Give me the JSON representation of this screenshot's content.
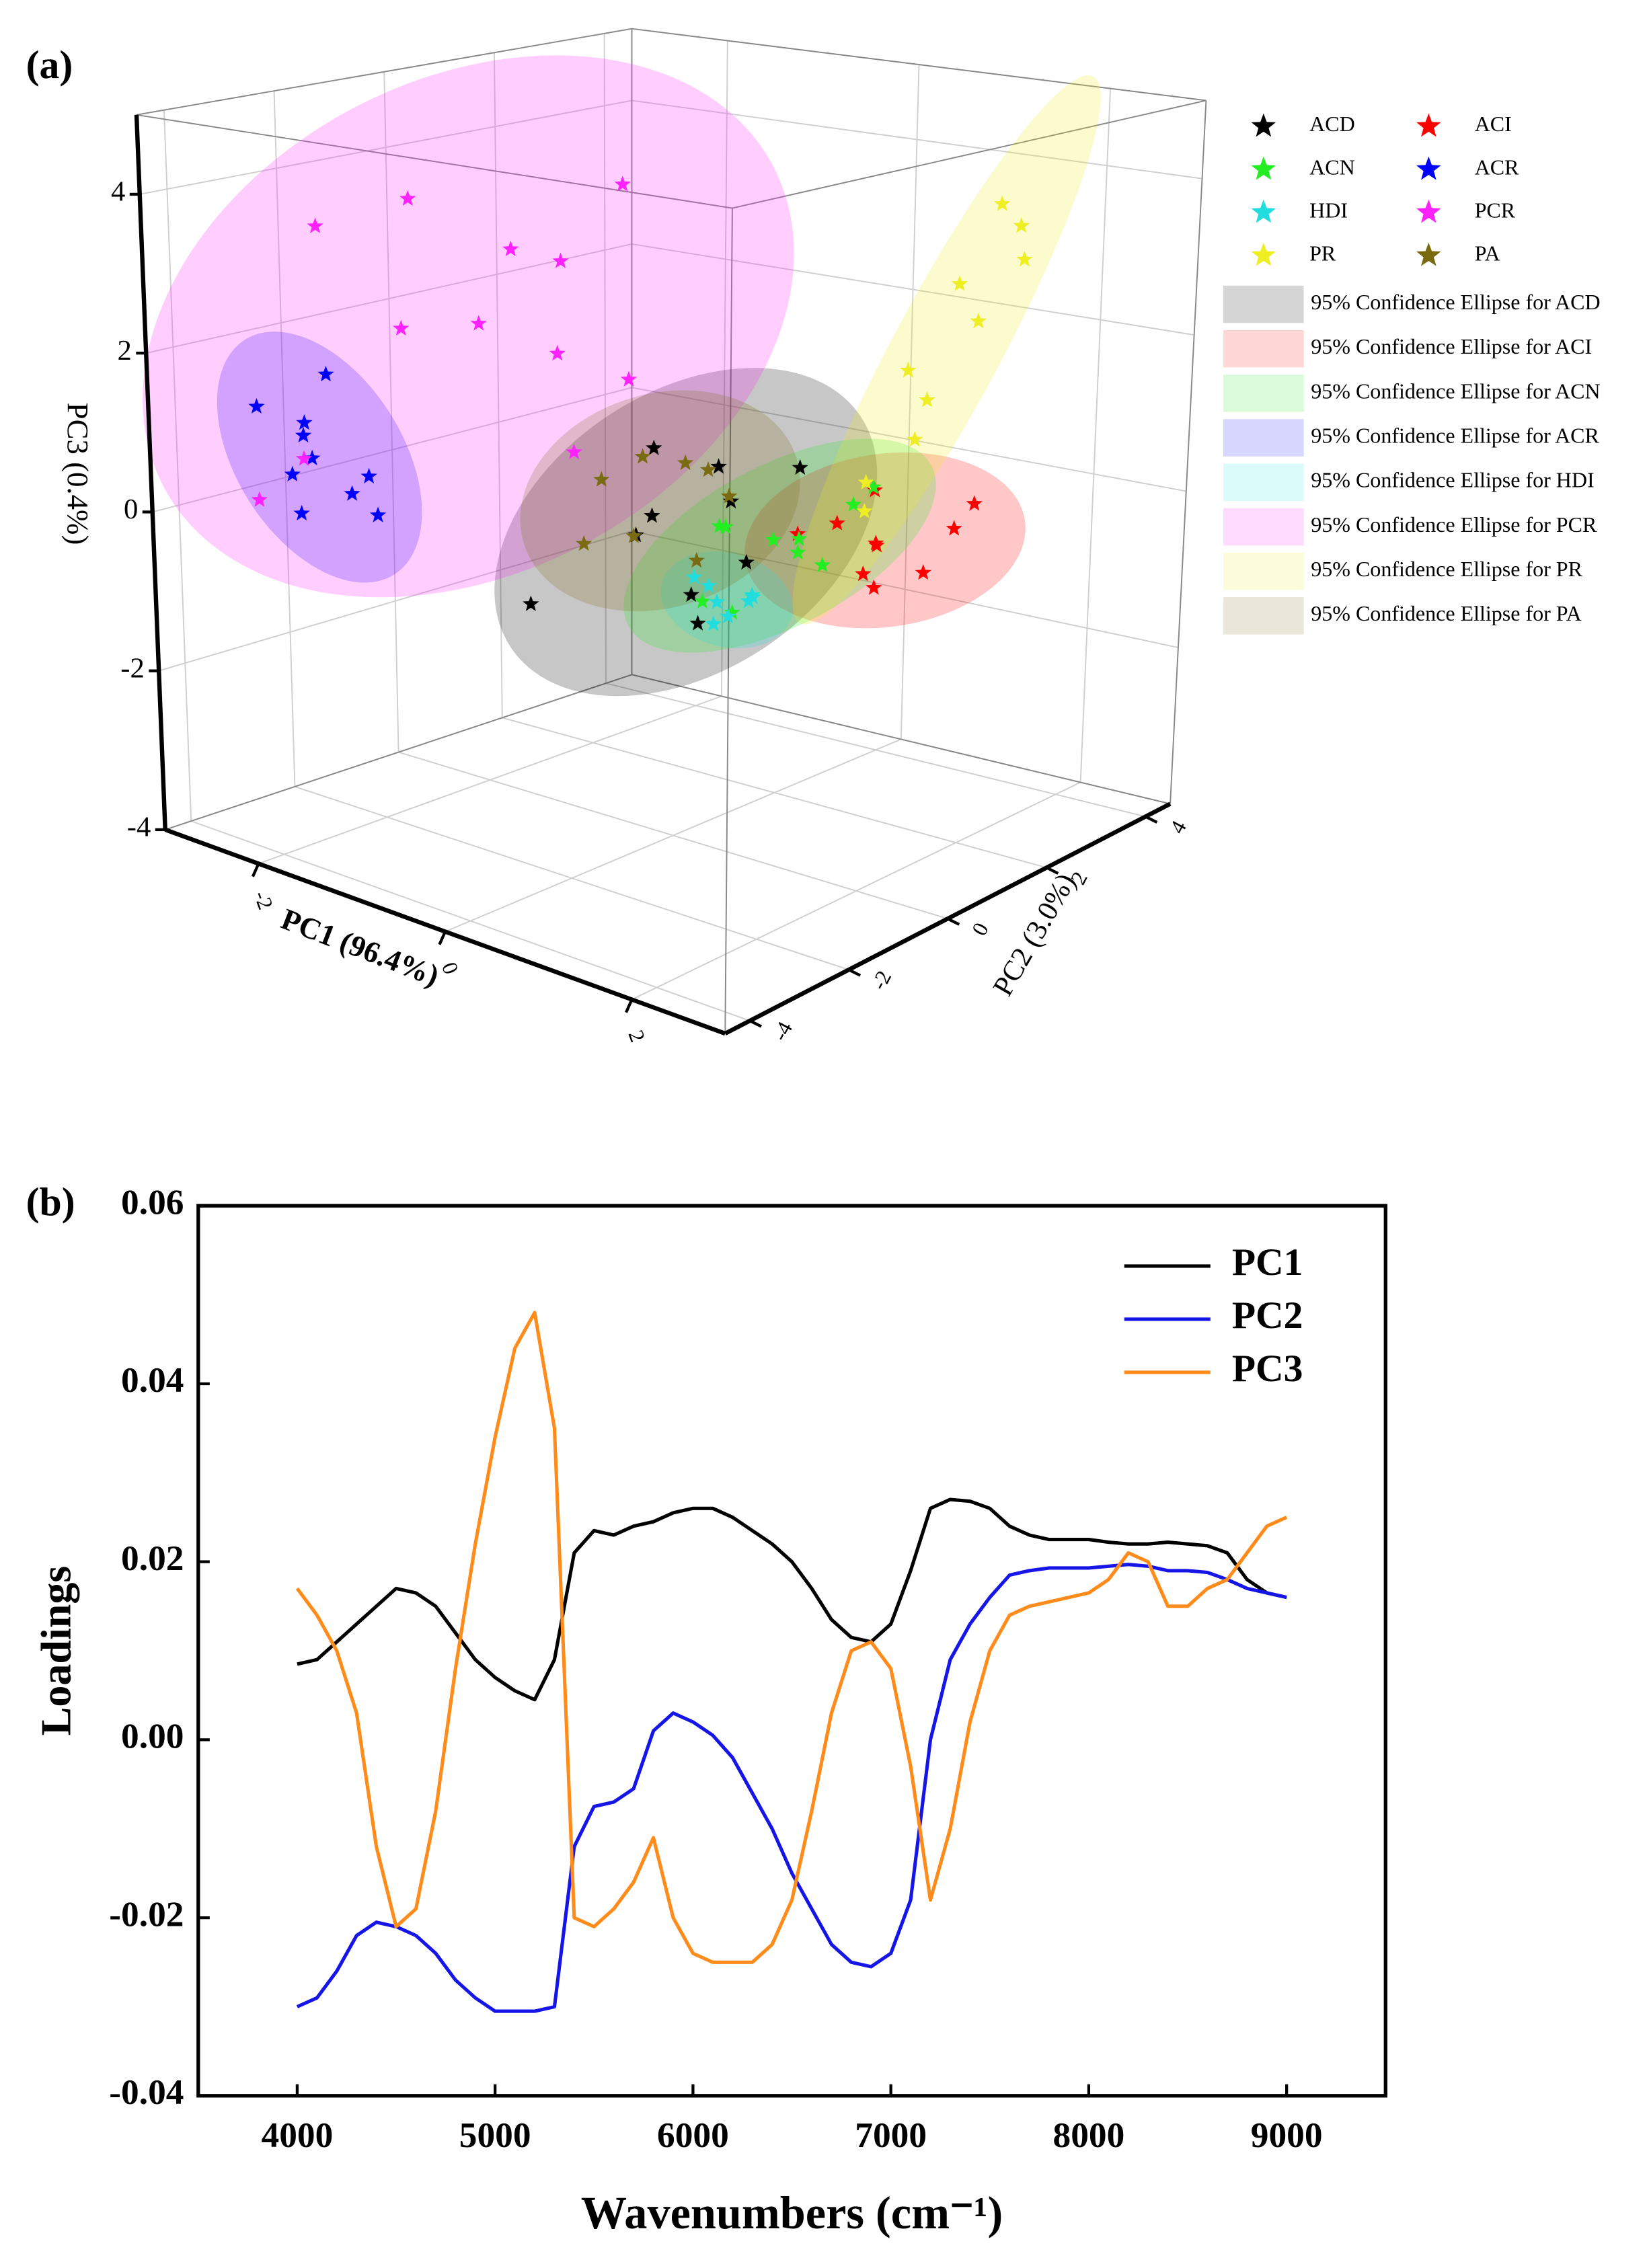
{
  "chart_data": [
    {
      "type": "scatter3d",
      "panel_label": "(a)",
      "xlabel": "PC1 (96.4%)",
      "ylabel": "PC2 (3.0%)",
      "zlabel": "PC3 (0.4%)",
      "xlim": [
        -3,
        3
      ],
      "ylim": [
        -4.5,
        4.5
      ],
      "zlim": [
        -4,
        5
      ],
      "xticks": [
        -2,
        0,
        2
      ],
      "yticks": [
        -4,
        -2,
        0,
        2,
        4
      ],
      "zticks": [
        -4,
        -2,
        0,
        2,
        4
      ],
      "series": [
        {
          "name": "ACD",
          "color": "#000000",
          "x": [
            -0.5,
            0.2,
            0.6,
            -0.2,
            0.4,
            -0.7,
            0.1,
            0.5,
            -0.3,
            0.8
          ],
          "y": [
            0.5,
            -0.8,
            0.3,
            1.2,
            -0.4,
            -1.5,
            0.9,
            1.5,
            -0.2,
            -1.0
          ],
          "z": [
            0.6,
            0.2,
            -0.5,
            0.3,
            -0.8,
            -1.0,
            0.0,
            0.4,
            -0.3,
            -0.9
          ]
        },
        {
          "name": "ACI",
          "color": "#ff0000",
          "x": [
            0.3,
            0.8,
            0.5,
            0.1,
            0.9,
            0.6,
            0.2,
            0.7,
            0.4,
            1.0
          ],
          "y": [
            2.6,
            3.4,
            3.0,
            2.2,
            3.8,
            2.8,
            3.5,
            2.4,
            3.2,
            4.0
          ],
          "z": [
            -0.6,
            -1.3,
            -0.9,
            -0.7,
            -0.8,
            -1.4,
            -0.4,
            -1.1,
            -1.0,
            -0.5
          ]
        },
        {
          "name": "ACN",
          "color": "#22ee22",
          "x": [
            0.2,
            0.7,
            0.5,
            0.9,
            0.3,
            0.6,
            0.1,
            0.8,
            0.4,
            0.5
          ],
          "y": [
            0.5,
            1.6,
            1.0,
            2.2,
            0.0,
            1.3,
            0.8,
            2.0,
            0.4,
            1.5
          ],
          "z": [
            -0.2,
            -0.8,
            -0.4,
            0.1,
            -1.0,
            -0.6,
            -0.3,
            -0.1,
            -1.2,
            -0.5
          ]
        },
        {
          "name": "ACR",
          "color": "#0000ff",
          "x": [
            -3.0,
            -2.9,
            -2.6,
            -2.4,
            -2.8,
            -2.5,
            -2.2,
            -3.0,
            -2.7,
            -2.3
          ],
          "y": [
            -2.5,
            -1.8,
            -2.2,
            -1.5,
            -2.0,
            -2.6,
            -1.7,
            -1.2,
            -2.4,
            -2.0
          ],
          "z": [
            1.0,
            0.7,
            0.4,
            0.1,
            0.6,
            -0.2,
            -0.3,
            1.2,
            0.2,
            0.0
          ]
        },
        {
          "name": "HDI",
          "color": "#22dddd",
          "x": [
            0.2,
            0.4,
            0.3,
            0.1,
            0.5,
            0.3,
            0.2,
            0.4
          ],
          "y": [
            0.3,
            0.8,
            0.5,
            0.2,
            0.6,
            0.9,
            0.4,
            0.1
          ],
          "z": [
            -0.9,
            -1.1,
            -1.3,
            -0.8,
            -1.0,
            -1.2,
            -1.4,
            -1.0
          ]
        },
        {
          "name": "PCR",
          "color": "#ff22ff",
          "x": [
            -2.9,
            -2.5,
            -2.0,
            -1.5,
            -1.0,
            -0.6,
            -2.8,
            -1.8,
            -0.9,
            -2.2,
            -1.2,
            -3.0
          ],
          "y": [
            -1.5,
            -0.5,
            0.5,
            -1.0,
            0.8,
            0.2,
            -2.0,
            1.0,
            -0.3,
            -1.2,
            0.0,
            -2.5
          ],
          "z": [
            3.2,
            3.5,
            2.8,
            2.2,
            3.8,
            1.5,
            0.3,
            1.4,
            0.6,
            2.0,
            2.9,
            -0.2
          ]
        },
        {
          "name": "PR",
          "color": "#eeee22",
          "x": [
            0.6,
            0.9,
            1.2,
            1.0,
            1.4,
            0.8,
            1.1,
            1.3,
            0.7,
            1.5
          ],
          "y": [
            2.6,
            3.2,
            3.6,
            2.8,
            4.0,
            3.0,
            3.4,
            3.8,
            2.4,
            3.9
          ],
          "z": [
            0.0,
            1.0,
            2.0,
            0.6,
            3.2,
            1.4,
            2.5,
            3.5,
            -0.3,
            2.8
          ]
        },
        {
          "name": "PA",
          "color": "#7a6a10",
          "x": [
            -0.5,
            0.0,
            -0.3,
            0.3,
            -0.6,
            0.1,
            -0.2,
            0.4
          ],
          "y": [
            -0.5,
            0.2,
            -1.2,
            0.5,
            0.3,
            -0.8,
            1.0,
            -0.3
          ],
          "z": [
            0.4,
            0.6,
            -0.2,
            0.2,
            -0.5,
            0.9,
            0.3,
            -0.4
          ]
        }
      ],
      "ellipse_labels": [
        "95% Confidence Ellipse for ACD",
        "95% Confidence Ellipse for ACI",
        "95% Confidence Ellipse for ACN",
        "95% Confidence Ellipse for ACR",
        "95% Confidence Ellipse for HDI",
        "95% Confidence Ellipse for PCR",
        "95% Confidence Ellipse for PR",
        "95% Confidence Ellipse for PA"
      ]
    },
    {
      "type": "line",
      "panel_label": "(b)",
      "xlabel": "Wavenumbers (cm⁻¹)",
      "ylabel": "Loadings",
      "xlim": [
        3500,
        9500
      ],
      "ylim": [
        -0.04,
        0.06
      ],
      "xticks": [
        4000,
        5000,
        6000,
        7000,
        8000,
        9000
      ],
      "yticks": [
        -0.04,
        -0.02,
        {
          "value": 0,
          "label": "0.00"
        },
        0.02,
        0.04,
        0.06
      ],
      "x": [
        4000,
        4100,
        4200,
        4300,
        4400,
        4500,
        4600,
        4700,
        4800,
        4900,
        5000,
        5100,
        5200,
        5300,
        5400,
        5500,
        5600,
        5700,
        5800,
        5900,
        6000,
        6100,
        6200,
        6300,
        6400,
        6500,
        6600,
        6700,
        6800,
        6900,
        7000,
        7100,
        7200,
        7300,
        7400,
        7500,
        7600,
        7700,
        7800,
        7900,
        8000,
        8100,
        8200,
        8300,
        8400,
        8500,
        8600,
        8700,
        8800,
        8900,
        9000
      ],
      "series": [
        {
          "name": "PC1",
          "color": "#000000",
          "values": [
            0.0085,
            0.009,
            0.011,
            0.013,
            0.015,
            0.017,
            0.0165,
            0.015,
            0.012,
            0.009,
            0.007,
            0.0055,
            0.0045,
            0.009,
            0.021,
            0.0235,
            0.023,
            0.024,
            0.0245,
            0.0255,
            0.026,
            0.026,
            0.025,
            0.0235,
            0.022,
            0.02,
            0.017,
            0.0135,
            0.0115,
            0.011,
            0.013,
            0.019,
            0.026,
            0.027,
            0.0268,
            0.026,
            0.024,
            0.023,
            0.0225,
            0.0225,
            0.0225,
            0.0222,
            0.022,
            0.022,
            0.0222,
            0.022,
            0.0218,
            0.021,
            0.018,
            0.0165,
            0.016
          ]
        },
        {
          "name": "PC2",
          "color": "#1515e8",
          "values": [
            -0.03,
            -0.029,
            -0.026,
            -0.022,
            -0.0205,
            -0.021,
            -0.022,
            -0.024,
            -0.027,
            -0.029,
            -0.0305,
            -0.0305,
            -0.0305,
            -0.03,
            -0.012,
            -0.0075,
            -0.007,
            -0.0055,
            0.001,
            0.003,
            0.002,
            0.0005,
            -0.002,
            -0.006,
            -0.01,
            -0.015,
            -0.019,
            -0.023,
            -0.025,
            -0.0255,
            -0.024,
            -0.018,
            0.0,
            0.009,
            0.013,
            0.016,
            0.0185,
            0.019,
            0.0193,
            0.0193,
            0.0193,
            0.0195,
            0.0197,
            0.0195,
            0.019,
            0.019,
            0.0188,
            0.018,
            0.017,
            0.0165,
            0.016
          ]
        },
        {
          "name": "PC3",
          "color": "#ff8c1a",
          "values": [
            0.017,
            0.014,
            0.01,
            0.003,
            -0.012,
            -0.021,
            -0.019,
            -0.008,
            0.008,
            0.022,
            0.034,
            0.044,
            0.048,
            0.035,
            -0.02,
            -0.021,
            -0.019,
            -0.016,
            -0.011,
            -0.02,
            -0.024,
            -0.025,
            -0.025,
            -0.025,
            -0.023,
            -0.018,
            -0.008,
            0.003,
            0.01,
            0.011,
            0.008,
            -0.003,
            -0.018,
            -0.01,
            0.002,
            0.01,
            0.014,
            0.015,
            0.0155,
            0.016,
            0.0165,
            0.018,
            0.021,
            0.02,
            0.015,
            0.015,
            0.017,
            0.018,
            0.021,
            0.024,
            0.025
          ]
        }
      ]
    }
  ]
}
